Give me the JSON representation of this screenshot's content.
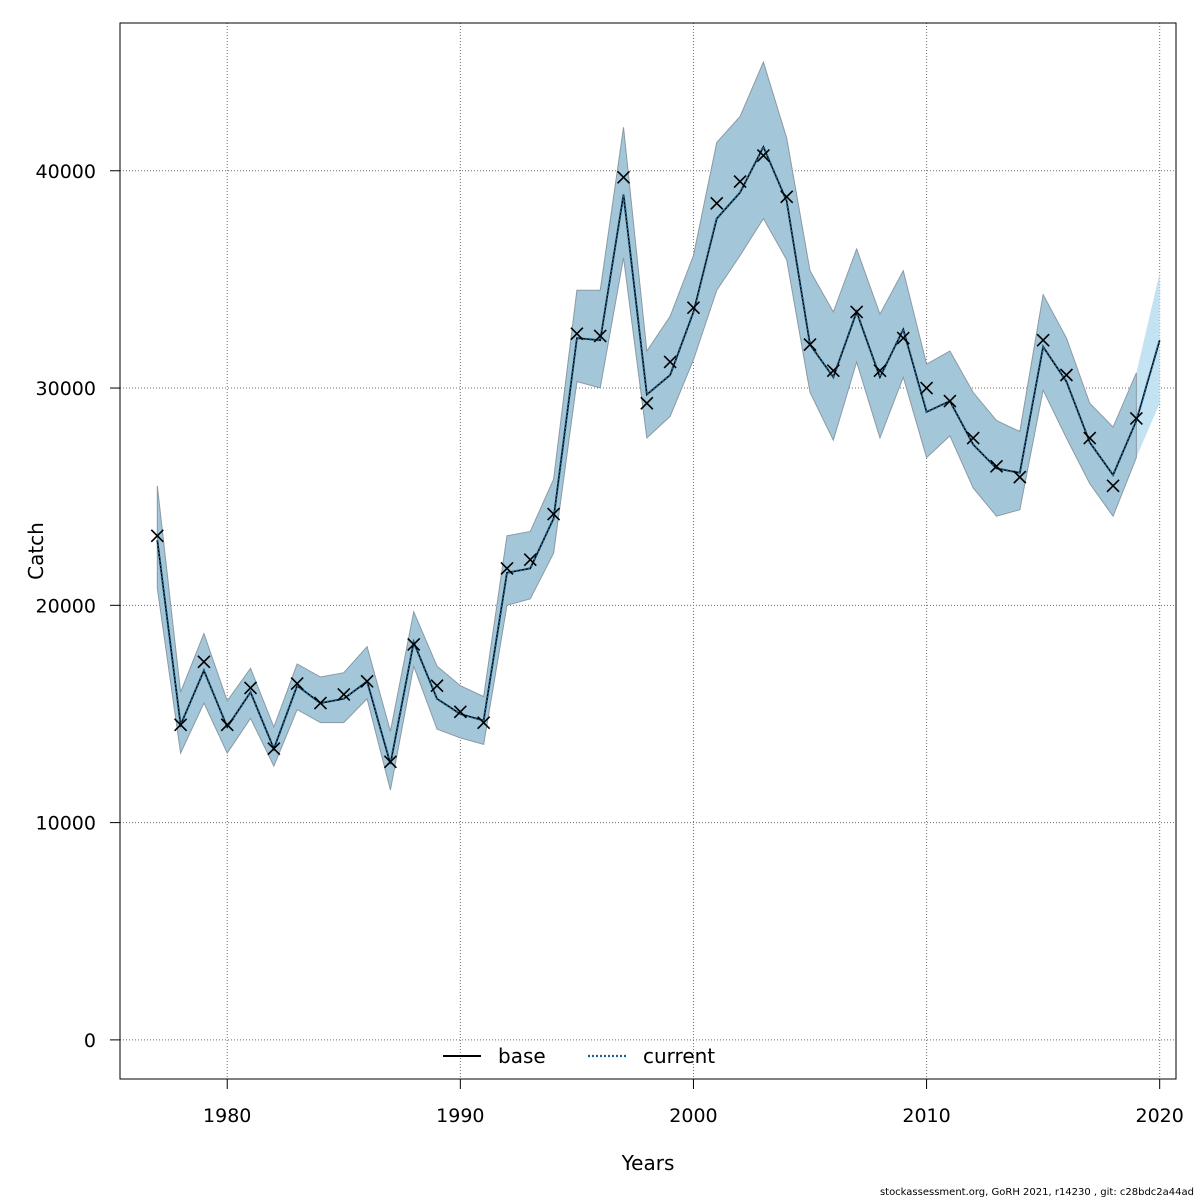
{
  "chart_data": {
    "type": "line",
    "xlabel": "Years",
    "ylabel": "Catch",
    "xlim": [
      1975.4,
      2020.7
    ],
    "ylim": [
      -1800,
      46800
    ],
    "x_ticks": [
      1980,
      1990,
      2000,
      2010,
      2020
    ],
    "x_tick_labels": [
      "1980",
      "1990",
      "2000",
      "2010",
      "2020"
    ],
    "y_ticks": [
      0,
      10000,
      20000,
      30000,
      40000
    ],
    "y_tick_labels": [
      "0",
      "10000",
      "20000",
      "30000",
      "40000"
    ],
    "grid": true,
    "legend_position": "bottom",
    "legend": [
      {
        "label": "base",
        "style": "solid",
        "color": "#000000"
      },
      {
        "label": "current",
        "style": "dotted",
        "color": "#1b5f8a"
      }
    ],
    "colors": {
      "band_observed": "#a3c6d8",
      "band_forecast": "#c3e2f2",
      "band_edge": "#8a9aa5",
      "grid": "#6f6f6f",
      "current_line": "#1b5f8a",
      "base_line": "#000000"
    },
    "years": [
      1977,
      1978,
      1979,
      1980,
      1981,
      1982,
      1983,
      1984,
      1985,
      1986,
      1987,
      1988,
      1989,
      1990,
      1991,
      1992,
      1993,
      1994,
      1995,
      1996,
      1997,
      1998,
      1999,
      2000,
      2001,
      2002,
      2003,
      2004,
      2005,
      2006,
      2007,
      2008,
      2009,
      2010,
      2011,
      2012,
      2013,
      2014,
      2015,
      2016,
      2017,
      2018,
      2019,
      2020
    ],
    "series": [
      {
        "name": "base",
        "values": [
          23000,
          14500,
          17000,
          14400,
          16000,
          13400,
          16300,
          15500,
          15700,
          16500,
          12700,
          18300,
          15700,
          15000,
          14700,
          21500,
          21700,
          24000,
          32300,
          32200,
          38900,
          29700,
          30600,
          33500,
          37800,
          39000,
          41100,
          38600,
          32000,
          30500,
          33500,
          30500,
          32700,
          28900,
          29400,
          27400,
          26300,
          26100,
          31900,
          30300,
          27500,
          26000,
          28500,
          32200
        ]
      },
      {
        "name": "current",
        "values": [
          23000,
          14500,
          17000,
          14400,
          16000,
          13400,
          16300,
          15500,
          15700,
          16500,
          12700,
          18300,
          15700,
          15000,
          14700,
          21500,
          21700,
          24000,
          32300,
          32200,
          38900,
          29700,
          30600,
          33500,
          37800,
          39000,
          41100,
          38600,
          32000,
          30500,
          33500,
          30500,
          32700,
          28900,
          29400,
          27400,
          26300,
          26100,
          31900,
          30300,
          27500,
          26000,
          28500,
          32200
        ]
      }
    ],
    "observed": {
      "years": [
        1977,
        1978,
        1979,
        1980,
        1981,
        1982,
        1983,
        1984,
        1985,
        1986,
        1987,
        1988,
        1989,
        1990,
        1991,
        1992,
        1993,
        1994,
        1995,
        1996,
        1997,
        1998,
        1999,
        2000,
        2001,
        2002,
        2003,
        2004,
        2005,
        2006,
        2007,
        2008,
        2009,
        2010,
        2011,
        2012,
        2013,
        2014,
        2015,
        2016,
        2017,
        2018,
        2019
      ],
      "values": [
        23200,
        14500,
        17400,
        14500,
        16200,
        13400,
        16400,
        15500,
        15900,
        16500,
        12800,
        18200,
        16300,
        15100,
        14600,
        21700,
        22100,
        24200,
        32500,
        32400,
        39700,
        29300,
        31200,
        33700,
        38500,
        39500,
        40700,
        38800,
        32000,
        30800,
        33500,
        30800,
        32300,
        30000,
        29400,
        27700,
        26400,
        25900,
        32200,
        30600,
        27700,
        25500,
        28600
      ]
    },
    "confidence_band": {
      "lower": [
        20800,
        13200,
        15500,
        13200,
        14800,
        12600,
        15200,
        14600,
        14600,
        15700,
        11500,
        17200,
        14300,
        13900,
        13600,
        20000,
        20300,
        22400,
        30300,
        30000,
        36000,
        27700,
        28700,
        31300,
        34500,
        36100,
        37800,
        35900,
        29800,
        27600,
        31200,
        27700,
        30500,
        26800,
        27800,
        25400,
        24100,
        24400,
        29900,
        27700,
        25600,
        24100,
        26800,
        29300
      ],
      "upper": [
        25500,
        16000,
        18700,
        15600,
        17100,
        14400,
        17300,
        16700,
        16900,
        18100,
        14200,
        19700,
        17200,
        16300,
        15800,
        23200,
        23400,
        25800,
        34500,
        34500,
        42000,
        31700,
        33300,
        36100,
        41300,
        42500,
        45000,
        41500,
        35400,
        33500,
        36400,
        33400,
        35400,
        31100,
        31700,
        29800,
        28500,
        28000,
        34300,
        32300,
        29300,
        28200,
        30700,
        35300
      ],
      "forecast_from": 2019
    },
    "footer": "stockassessment.org, GoRH  2021, r14230 , git: c28bdc2a44ad"
  }
}
